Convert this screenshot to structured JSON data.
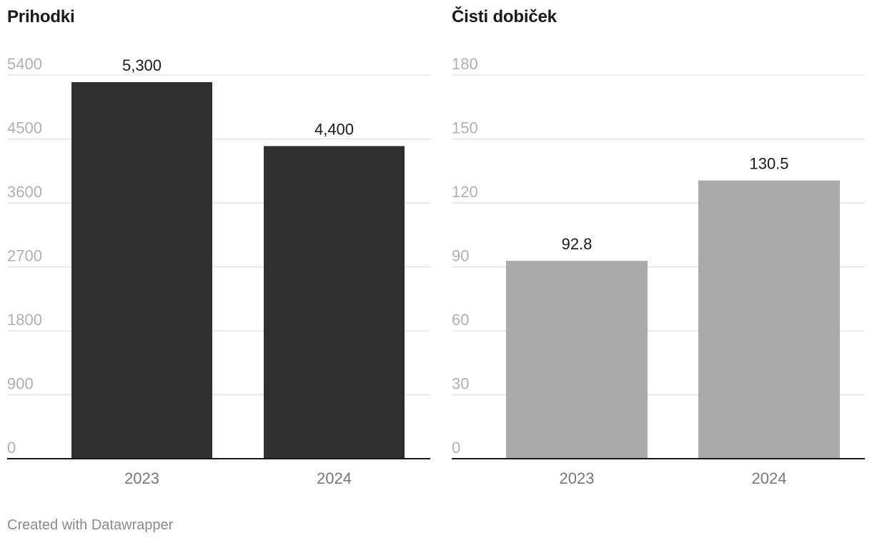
{
  "chart_data": [
    {
      "type": "bar",
      "title": "Prihodki",
      "categories": [
        "2023",
        "2024"
      ],
      "values": [
        5300,
        4400
      ],
      "value_labels": [
        "5,300",
        "4,400"
      ],
      "yticks": [
        "0",
        "900",
        "1800",
        "2700",
        "3600",
        "4500",
        "5400"
      ],
      "ytick_values": [
        0,
        900,
        1800,
        2700,
        3600,
        4500,
        5400
      ],
      "ylim": [
        0,
        5400
      ],
      "grid": true,
      "bar_color": "#2f2f2f"
    },
    {
      "type": "bar",
      "title": "Čisti dobiček",
      "categories": [
        "2023",
        "2024"
      ],
      "values": [
        92.8,
        130.5
      ],
      "value_labels": [
        "92.8",
        "130.5"
      ],
      "yticks": [
        "0",
        "30",
        "60",
        "90",
        "120",
        "150",
        "180"
      ],
      "ytick_values": [
        0,
        30,
        60,
        90,
        120,
        150,
        180
      ],
      "ylim": [
        0,
        180
      ],
      "grid": true,
      "bar_color": "#aaaaaa"
    }
  ],
  "footer": "Created with Datawrapper"
}
